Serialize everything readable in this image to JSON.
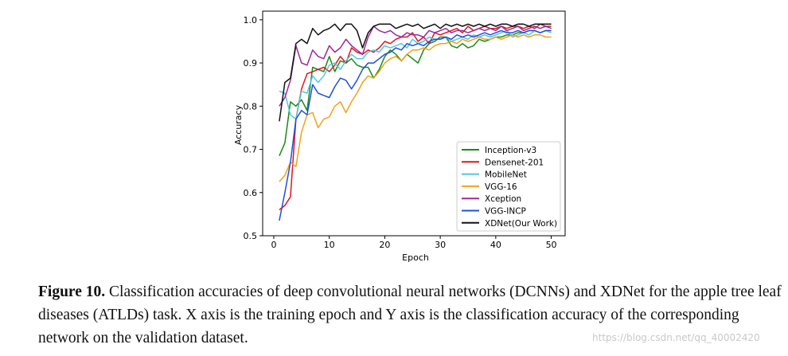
{
  "chart_data": {
    "type": "line",
    "title": "",
    "xlabel": "Epoch",
    "ylabel": "Accuracy",
    "xlim": [
      -2,
      52.5
    ],
    "ylim": [
      0.5,
      1.02
    ],
    "xticks": [
      0,
      10,
      20,
      30,
      40,
      50
    ],
    "yticks": [
      0.5,
      0.6,
      0.7,
      0.8,
      0.9,
      1.0
    ],
    "xtick_labels": [
      "0",
      "10",
      "20",
      "30",
      "40",
      "50"
    ],
    "ytick_labels": [
      "0.5",
      "0.6",
      "0.7",
      "0.8",
      "0.9",
      "1.0"
    ],
    "grid": false,
    "legend_position": "lower-right",
    "x": [
      1,
      2,
      3,
      4,
      5,
      6,
      7,
      8,
      9,
      10,
      11,
      12,
      13,
      14,
      15,
      16,
      17,
      18,
      19,
      20,
      21,
      22,
      23,
      24,
      25,
      26,
      27,
      28,
      29,
      30,
      31,
      32,
      33,
      34,
      35,
      36,
      37,
      38,
      39,
      40,
      41,
      42,
      43,
      44,
      45,
      46,
      47,
      48,
      49,
      50
    ],
    "series": [
      {
        "name": "Inception-v3",
        "color": "#1a8a1a",
        "values": [
          0.685,
          0.715,
          0.81,
          0.8,
          0.815,
          0.79,
          0.89,
          0.885,
          0.88,
          0.915,
          0.88,
          0.905,
          0.9,
          0.91,
          0.895,
          0.89,
          0.89,
          0.865,
          0.885,
          0.915,
          0.93,
          0.92,
          0.905,
          0.92,
          0.91,
          0.9,
          0.93,
          0.945,
          0.95,
          0.96,
          0.96,
          0.94,
          0.935,
          0.945,
          0.935,
          0.94,
          0.955,
          0.95,
          0.955,
          0.96,
          0.96,
          0.965,
          0.965,
          0.97,
          0.97,
          0.975,
          0.975,
          0.97,
          0.975,
          0.975
        ]
      },
      {
        "name": "Densenet-201",
        "color": "#e0141e",
        "values": [
          0.56,
          0.57,
          0.59,
          0.77,
          0.84,
          0.875,
          0.88,
          0.885,
          0.89,
          0.88,
          0.895,
          0.915,
          0.9,
          0.935,
          0.925,
          0.92,
          0.93,
          0.925,
          0.935,
          0.95,
          0.945,
          0.955,
          0.96,
          0.96,
          0.97,
          0.95,
          0.96,
          0.945,
          0.97,
          0.965,
          0.97,
          0.975,
          0.98,
          0.97,
          0.985,
          0.975,
          0.98,
          0.985,
          0.98,
          0.98,
          0.985,
          0.98,
          0.985,
          0.985,
          0.98,
          0.985,
          0.98,
          0.99,
          0.985,
          0.985
        ]
      },
      {
        "name": "MobileNet",
        "color": "#50c8e0",
        "values": [
          0.835,
          0.83,
          0.78,
          0.77,
          0.835,
          0.83,
          0.87,
          0.855,
          0.87,
          0.895,
          0.9,
          0.885,
          0.905,
          0.92,
          0.91,
          0.91,
          0.925,
          0.93,
          0.925,
          0.94,
          0.935,
          0.94,
          0.945,
          0.935,
          0.955,
          0.945,
          0.95,
          0.96,
          0.955,
          0.955,
          0.96,
          0.95,
          0.955,
          0.96,
          0.955,
          0.965,
          0.96,
          0.965,
          0.96,
          0.965,
          0.97,
          0.975,
          0.96,
          0.965,
          0.97,
          0.965,
          0.975,
          0.97,
          0.975,
          0.97
        ]
      },
      {
        "name": "VGG-16",
        "color": "#f5a01a",
        "values": [
          0.625,
          0.64,
          0.67,
          0.66,
          0.74,
          0.78,
          0.785,
          0.75,
          0.77,
          0.775,
          0.8,
          0.81,
          0.785,
          0.81,
          0.83,
          0.855,
          0.87,
          0.865,
          0.88,
          0.9,
          0.91,
          0.915,
          0.905,
          0.92,
          0.93,
          0.93,
          0.935,
          0.93,
          0.94,
          0.945,
          0.945,
          0.95,
          0.945,
          0.955,
          0.95,
          0.955,
          0.96,
          0.955,
          0.955,
          0.96,
          0.955,
          0.96,
          0.965,
          0.96,
          0.965,
          0.96,
          0.965,
          0.965,
          0.96,
          0.96
        ]
      },
      {
        "name": "Xception",
        "color": "#a0279a",
        "values": [
          0.8,
          0.82,
          0.86,
          0.94,
          0.9,
          0.895,
          0.93,
          0.915,
          0.91,
          0.94,
          0.925,
          0.935,
          0.955,
          0.94,
          0.93,
          0.92,
          0.96,
          0.985,
          0.975,
          0.97,
          0.975,
          0.965,
          0.96,
          0.97,
          0.965,
          0.965,
          0.96,
          0.975,
          0.97,
          0.975,
          0.98,
          0.97,
          0.975,
          0.975,
          0.97,
          0.975,
          0.98,
          0.975,
          0.98,
          0.975,
          0.985,
          0.975,
          0.98,
          0.985,
          0.975,
          0.98,
          0.985,
          0.98,
          0.985,
          0.98
        ]
      },
      {
        "name": "VGG-INCP",
        "color": "#1f4fe0",
        "values": [
          0.535,
          0.6,
          0.67,
          0.77,
          0.79,
          0.78,
          0.85,
          0.83,
          0.825,
          0.82,
          0.845,
          0.865,
          0.86,
          0.84,
          0.86,
          0.885,
          0.9,
          0.9,
          0.91,
          0.92,
          0.925,
          0.935,
          0.93,
          0.945,
          0.94,
          0.945,
          0.94,
          0.95,
          0.955,
          0.955,
          0.96,
          0.955,
          0.965,
          0.96,
          0.965,
          0.96,
          0.965,
          0.97,
          0.965,
          0.97,
          0.975,
          0.97,
          0.97,
          0.975,
          0.97,
          0.975,
          0.975,
          0.97,
          0.975,
          0.975
        ]
      },
      {
        "name": "XDNet(Our Work)",
        "color": "#111111",
        "values": [
          0.765,
          0.855,
          0.865,
          0.945,
          0.955,
          0.945,
          0.98,
          0.965,
          0.975,
          0.98,
          0.99,
          0.975,
          0.99,
          0.99,
          0.975,
          0.935,
          0.97,
          0.985,
          0.99,
          0.99,
          0.99,
          0.98,
          0.985,
          0.99,
          0.985,
          0.99,
          0.98,
          0.985,
          0.99,
          0.98,
          0.99,
          0.985,
          0.99,
          0.985,
          0.99,
          0.985,
          0.99,
          0.985,
          0.99,
          0.985,
          0.99,
          0.99,
          0.985,
          0.99,
          0.99,
          0.985,
          0.99,
          0.99,
          0.99,
          0.99
        ]
      }
    ]
  },
  "caption": {
    "label": "Figure 10.",
    "text": " Classification accuracies of deep convolutional neural networks (DCNNs) and XDNet for the apple tree leaf diseases (ATLDs) task. X axis is the training epoch and Y axis is the classification accuracy of the corresponding network on the validation dataset."
  },
  "watermark": "https://blog.csdn.net/qq_40002420"
}
